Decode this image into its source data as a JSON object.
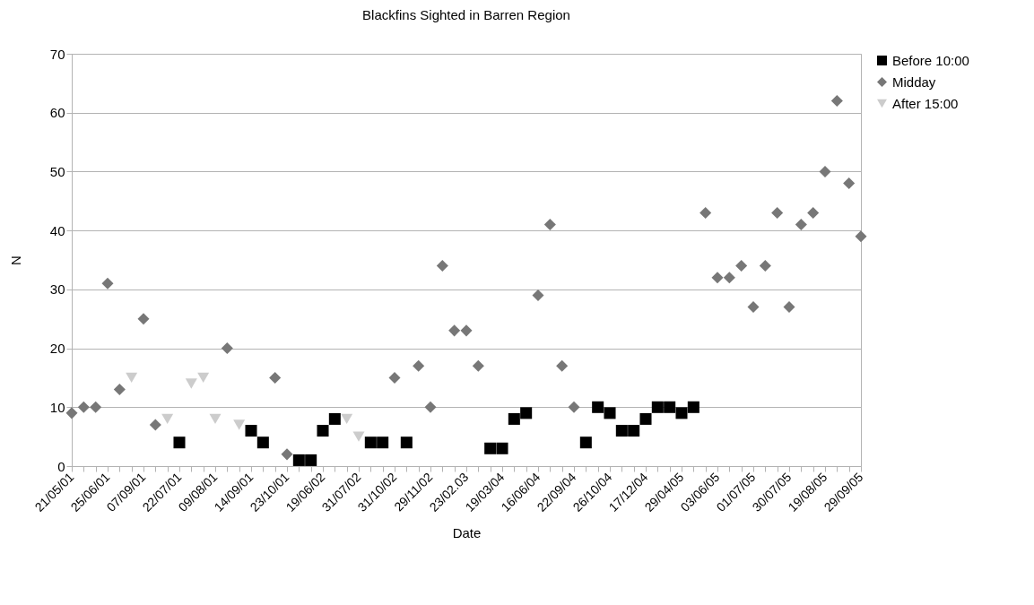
{
  "chart_data": {
    "type": "scatter",
    "title": "Blackfins Sighted in  Barren Region",
    "xlabel": "Date",
    "ylabel": "N",
    "categories": [
      "21/05/01",
      null,
      null,
      "25/06/01",
      null,
      null,
      "07/09/01",
      null,
      null,
      "22/07/01",
      null,
      null,
      "09/08/01",
      null,
      null,
      "14/09/01",
      null,
      null,
      "23/10/01",
      null,
      null,
      "19/06/02",
      null,
      null,
      "31/07/02",
      null,
      null,
      "31/10/02",
      null,
      null,
      "29/11/02",
      null,
      null,
      "23/02.03",
      null,
      null,
      "19/03/04",
      null,
      null,
      "16/06/04",
      null,
      null,
      "22/09/04",
      null,
      null,
      "26/10/04",
      null,
      null,
      "17/12/04",
      null,
      null,
      "29/04/05",
      null,
      null,
      "03/06/05",
      null,
      null,
      "01/07/05",
      null,
      null,
      "30/07/05",
      null,
      null,
      "19/08/05",
      null,
      null,
      "29/09/05"
    ],
    "series": [
      {
        "name": "Before 10:00",
        "color": "#000000",
        "marker": "square",
        "values": [
          null,
          null,
          null,
          null,
          null,
          null,
          null,
          null,
          null,
          4,
          null,
          null,
          null,
          null,
          null,
          6,
          4,
          null,
          null,
          1,
          1,
          6,
          8,
          null,
          null,
          4,
          4,
          null,
          4,
          null,
          null,
          null,
          null,
          null,
          null,
          3,
          3,
          8,
          9,
          null,
          null,
          null,
          null,
          4,
          10,
          9,
          6,
          6,
          8,
          10,
          10,
          9,
          10,
          null,
          null,
          null,
          null,
          null,
          null,
          null,
          null,
          null,
          null,
          null,
          null,
          null,
          null
        ]
      },
      {
        "name": "Midday",
        "color": "#777777",
        "marker": "diamond",
        "values": [
          9,
          10,
          10,
          31,
          13,
          null,
          25,
          7,
          null,
          null,
          null,
          null,
          null,
          20,
          null,
          null,
          null,
          15,
          2,
          null,
          null,
          null,
          null,
          null,
          null,
          null,
          null,
          15,
          null,
          17,
          10,
          34,
          23,
          23,
          17,
          null,
          null,
          null,
          null,
          29,
          41,
          17,
          10,
          null,
          null,
          null,
          null,
          null,
          null,
          null,
          null,
          null,
          null,
          43,
          32,
          32,
          34,
          27,
          34,
          43,
          27,
          41,
          43,
          50,
          62,
          48,
          39
        ]
      },
      {
        "name": "After 15:00",
        "color": "#cccccc",
        "marker": "triangle",
        "values": [
          null,
          null,
          null,
          null,
          null,
          15,
          null,
          null,
          8,
          null,
          14,
          15,
          8,
          null,
          7,
          null,
          null,
          null,
          null,
          null,
          null,
          null,
          null,
          8,
          5,
          null,
          null,
          null,
          null,
          null,
          null,
          null,
          null,
          null,
          null,
          null,
          null,
          null,
          null,
          null,
          null,
          null,
          null,
          null,
          null,
          null,
          null,
          null,
          null,
          null,
          null,
          null,
          null,
          null,
          null,
          null,
          null,
          null,
          null,
          null,
          null,
          null,
          null,
          null,
          null,
          null,
          null
        ]
      }
    ],
    "ylim": [
      0,
      70
    ],
    "yticks": [
      0,
      10,
      20,
      30,
      40,
      50,
      60,
      70
    ],
    "grid": "y",
    "legend": "right"
  }
}
